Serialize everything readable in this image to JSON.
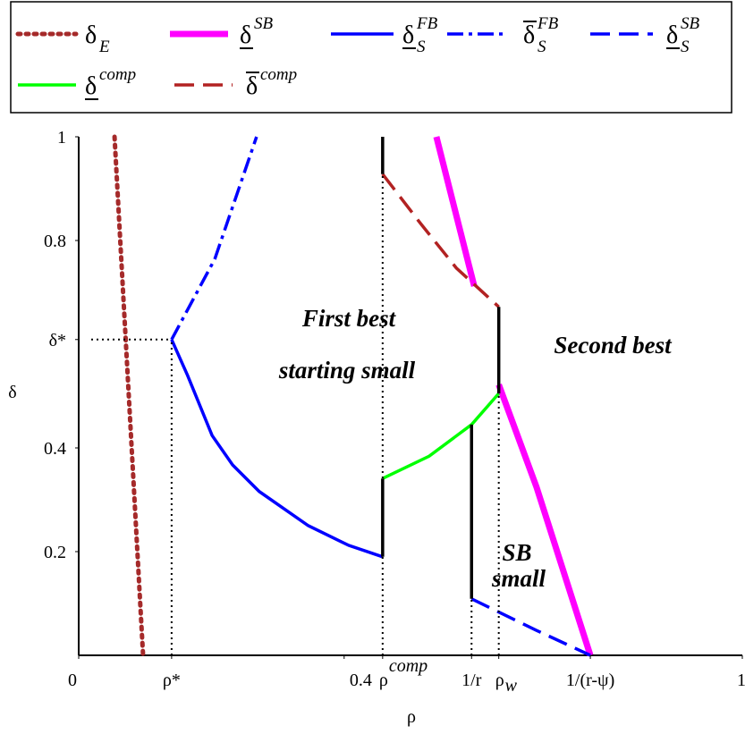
{
  "chart_data": {
    "type": "line",
    "xlabel": "ρ",
    "ylabel": "δ",
    "xlim": [
      0,
      1
    ],
    "ylim": [
      0,
      1
    ],
    "xticks": [
      0,
      0.4,
      1,
      {
        "value": 0.14,
        "label": "ρ*"
      },
      {
        "value": 0.458,
        "label": "ρ",
        "sup": "comp"
      },
      {
        "value": 0.592,
        "label": "1/r"
      },
      {
        "value": 0.633,
        "label": "ρ",
        "sub": "w"
      },
      {
        "value": 0.771,
        "label": "1/(r-ψ)"
      }
    ],
    "yticks": [
      0.2,
      0.4,
      0.8,
      1,
      {
        "value": 0.609,
        "label": "δ*"
      }
    ],
    "annotations": [
      "First best",
      "starting small",
      "Second best",
      "SB",
      "small"
    ],
    "series": [
      {
        "name": "δ",
        "sub": "E",
        "color": "#a52a2a",
        "dash": "dotted",
        "x": [
          0.054,
          0.097
        ],
        "y": [
          1,
          0
        ]
      },
      {
        "name": "δ",
        "sup": "SB",
        "bar": "under",
        "color": "#ff00ff",
        "dash": "solid",
        "wide": true,
        "x": [
          0.539,
          0.596,
          null,
          0.633,
          0.69,
          0.771
        ],
        "y": [
          1,
          0.712,
          null,
          0.522,
          0.324,
          0
        ]
      },
      {
        "name": "δ",
        "sub": "S",
        "sup": "FB",
        "bar": "under",
        "color": "#0000ff",
        "dash": "solid",
        "x": [
          0.14,
          0.164,
          0.201,
          0.232,
          0.272,
          0.346,
          0.407,
          0.458
        ],
        "y": [
          0.609,
          0.54,
          0.424,
          0.367,
          0.316,
          0.25,
          0.212,
          0.19
        ]
      },
      {
        "name": "δ",
        "sub": "S",
        "sup": "FB",
        "bar": "over",
        "color": "#0000ff",
        "dash": "dashdot",
        "x": [
          0.14,
          0.205,
          0.268
        ],
        "y": [
          0.609,
          0.764,
          1
        ]
      },
      {
        "name": "δ",
        "sub": "S",
        "sup": "SB",
        "bar": "under",
        "color": "#0000ff",
        "dash": "dashed",
        "x": [
          0.592,
          0.69,
          0.771
        ],
        "y": [
          0.109,
          0.048,
          0
        ]
      },
      {
        "name": "δ",
        "sup": "comp",
        "bar": "under",
        "color": "#00ff00",
        "dash": "solid",
        "x": [
          0.458,
          0.528,
          0.592,
          0.633
        ],
        "y": [
          0.341,
          0.384,
          0.445,
          0.505
        ]
      },
      {
        "name": "δ",
        "sup": "comp",
        "bar": "over",
        "color": "#b22222",
        "dash": "dashed",
        "x": [
          0.458,
          0.515,
          0.569,
          0.633
        ],
        "y": [
          0.928,
          0.833,
          0.747,
          0.672
        ]
      },
      {
        "color": "#000000",
        "dash": "solid",
        "x": [
          0.458,
          0.458,
          null,
          0.458,
          0.458,
          null,
          0.592,
          0.592,
          null,
          0.633,
          0.633
        ],
        "y": [
          0.19,
          0.341,
          null,
          0.928,
          1,
          null,
          0.109,
          0.445,
          null,
          0.505,
          0.672
        ]
      }
    ]
  }
}
